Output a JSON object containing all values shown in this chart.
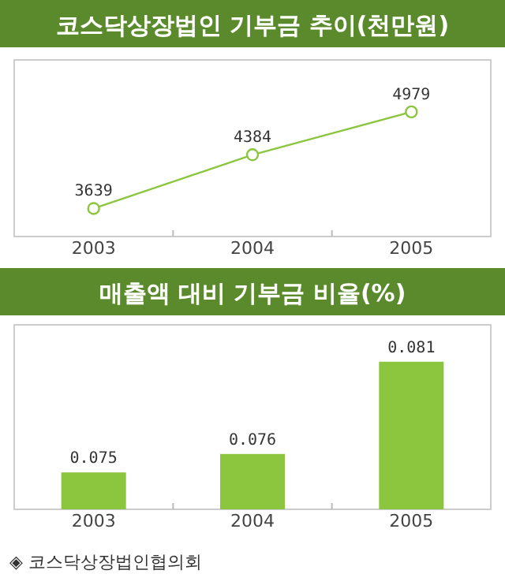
{
  "chart_data": [
    {
      "type": "line",
      "title": "코스닥상장법인 기부금 추이(천만원)",
      "categories": [
        "2003",
        "2004",
        "2005"
      ],
      "values": [
        3639,
        4384,
        4979
      ],
      "color": "#8cc63f",
      "marker": "circle",
      "data_labels": true,
      "ylim": [
        3250,
        5700
      ],
      "tick_labels": "x"
    },
    {
      "type": "bar",
      "title": "매출액 대비 기부금 비율(%)",
      "categories": [
        "2003",
        "2004",
        "2005"
      ],
      "values": [
        0.075,
        0.076,
        0.081
      ],
      "color": "#8cc63f",
      "data_labels": true,
      "ylim": [
        0.073,
        0.083
      ],
      "tick_labels": "x",
      "annotations": [
        "◈ 코스닥상장법인협의회"
      ]
    }
  ]
}
